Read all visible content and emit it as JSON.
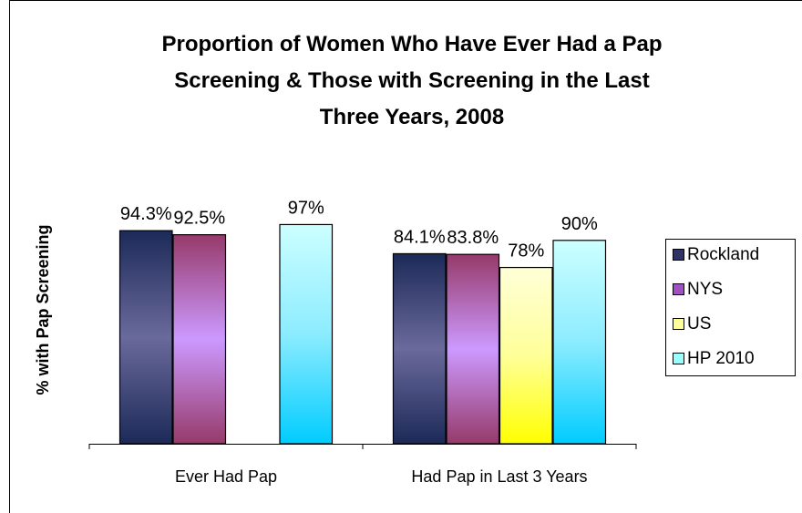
{
  "chart_data": {
    "type": "bar",
    "title": "Proportion of Women Who Have Ever Had a Pap Screening & Those with Screening in the Last Three Years, 2008",
    "y_label": "% with Pap Screening",
    "categories": [
      "Ever Had Pap",
      "Had Pap in Last 3 Years"
    ],
    "ylim": [
      0,
      100
    ],
    "legend": "right",
    "series": [
      {
        "name": "Rockland",
        "color": "#2e3566",
        "gradient": [
          "#1c2a58",
          "#6a6a9c",
          "#1c2a58"
        ],
        "values": [
          94.3,
          84.1
        ],
        "value_labels": [
          "94.3%",
          "84.1%"
        ]
      },
      {
        "name": "NYS",
        "color": "#a050c0",
        "gradient": [
          "#963a6a",
          "#cc99ff",
          "#963a6a"
        ],
        "values": [
          92.5,
          83.8
        ],
        "value_labels": [
          "92.5%",
          "83.8%"
        ]
      },
      {
        "name": "US",
        "color": "#ffff99",
        "gradient": [
          "#ffffd8",
          "#ffff99",
          "#ffff00"
        ],
        "values": [
          null,
          78
        ],
        "value_labels": [
          null,
          "78%"
        ]
      },
      {
        "name": "HP 2010",
        "color": "#99ffff",
        "gradient": [
          "#ccffff",
          "#8cecff",
          "#00ccff"
        ],
        "values": [
          97,
          90
        ],
        "value_labels": [
          "97%",
          "90%"
        ]
      }
    ]
  }
}
